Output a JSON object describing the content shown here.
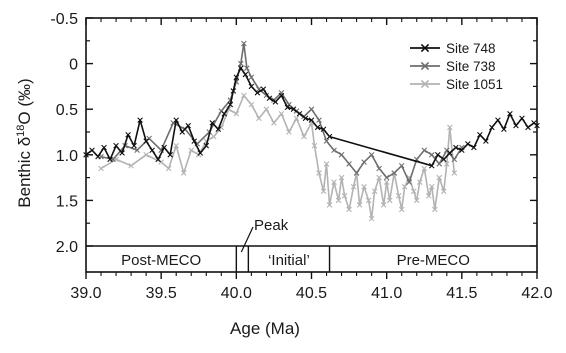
{
  "chart_data": {
    "type": "line",
    "xlabel": "Age (Ma)",
    "ylabel_main": "Benthic δ",
    "ylabel_sup": "18",
    "ylabel_tail": "O (‰)",
    "xlim": [
      39.0,
      42.0
    ],
    "ylim": [
      -0.5,
      2.0
    ],
    "y_inverted": true,
    "xticks": [
      39.0,
      39.5,
      40.0,
      40.5,
      41.0,
      41.5,
      42.0
    ],
    "xtick_labels": [
      "39.0",
      "39.5",
      "40.0",
      "40.5",
      "41.0",
      "41.5",
      "42.0"
    ],
    "yticks": [
      -0.5,
      0.0,
      0.5,
      1.0,
      1.5,
      2.0
    ],
    "ytick_labels": [
      "-0.5",
      "0",
      "0.5",
      "1.0",
      "1.5",
      "2.0"
    ],
    "legend_position": "top-right",
    "series": [
      {
        "name": "Site 748",
        "color": "#111111",
        "x": [
          39.0,
          39.04,
          39.08,
          39.12,
          39.16,
          39.2,
          39.24,
          39.28,
          39.32,
          39.36,
          39.4,
          39.44,
          39.48,
          39.52,
          39.56,
          39.6,
          39.64,
          39.68,
          39.72,
          39.76,
          39.8,
          39.84,
          39.88,
          39.92,
          39.96,
          39.98,
          40.0,
          40.03,
          40.06,
          40.1,
          40.14,
          40.18,
          40.22,
          40.26,
          40.3,
          40.34,
          40.38,
          40.42,
          40.46,
          40.5,
          40.54,
          40.58,
          40.62,
          41.3,
          41.34,
          41.38,
          41.42,
          41.46,
          41.5,
          41.54,
          41.58,
          41.62,
          41.66,
          41.7,
          41.74,
          41.78,
          41.82,
          41.86,
          41.9,
          41.94,
          41.98,
          42.0
        ],
        "y": [
          1.0,
          0.95,
          1.02,
          0.92,
          1.05,
          0.9,
          0.98,
          0.78,
          0.9,
          0.62,
          0.85,
          0.95,
          1.05,
          0.92,
          1.0,
          0.62,
          0.75,
          0.68,
          0.85,
          0.98,
          0.9,
          0.65,
          0.72,
          0.55,
          0.45,
          0.3,
          0.15,
          0.05,
          0.12,
          0.25,
          0.32,
          0.28,
          0.38,
          0.42,
          0.35,
          0.48,
          0.5,
          0.55,
          0.6,
          0.62,
          0.7,
          0.72,
          0.8,
          1.12,
          1.0,
          1.05,
          0.98,
          0.92,
          0.95,
          0.88,
          0.92,
          0.78,
          0.85,
          0.7,
          0.62,
          0.72,
          0.55,
          0.68,
          0.6,
          0.7,
          0.65,
          0.68
        ]
      },
      {
        "name": "Site 738",
        "color": "#6e6e6e",
        "x": [
          39.1,
          39.18,
          39.26,
          39.34,
          39.42,
          39.5,
          39.58,
          39.66,
          39.74,
          39.82,
          39.9,
          39.96,
          40.0,
          40.03,
          40.05,
          40.07,
          40.1,
          40.15,
          40.2,
          40.25,
          40.3,
          40.35,
          40.4,
          40.45,
          40.5,
          40.55,
          40.6,
          40.65,
          40.7,
          40.75,
          40.8,
          40.85,
          40.9,
          40.95,
          41.0,
          41.05,
          41.1,
          41.15,
          41.2,
          41.25,
          41.3,
          41.35,
          41.4,
          41.45,
          41.5
        ],
        "y": [
          1.02,
          1.05,
          0.9,
          0.95,
          0.82,
          0.95,
          0.65,
          0.72,
          0.88,
          0.75,
          0.52,
          0.4,
          0.2,
          0.0,
          -0.22,
          0.05,
          0.15,
          0.28,
          0.35,
          0.4,
          0.32,
          0.45,
          0.52,
          0.58,
          0.5,
          0.62,
          0.85,
          0.95,
          1.0,
          1.1,
          1.2,
          1.08,
          1.0,
          1.15,
          1.25,
          1.2,
          1.12,
          1.3,
          1.05,
          0.95,
          1.0,
          1.1,
          0.95,
          1.05,
          0.92
        ]
      },
      {
        "name": "Site 1051",
        "color": "#b3b3b3",
        "x": [
          39.1,
          39.2,
          39.3,
          39.4,
          39.5,
          39.55,
          39.6,
          39.65,
          39.7,
          39.75,
          39.8,
          39.85,
          39.9,
          39.95,
          40.0,
          40.05,
          40.1,
          40.15,
          40.2,
          40.25,
          40.3,
          40.35,
          40.4,
          40.45,
          40.5,
          40.52,
          40.55,
          40.58,
          40.6,
          40.62,
          40.65,
          40.68,
          40.7,
          40.72,
          40.75,
          40.78,
          40.8,
          40.82,
          40.85,
          40.88,
          40.9,
          40.92,
          40.95,
          40.98,
          41.0,
          41.02,
          41.05,
          41.08,
          41.1,
          41.12,
          41.15,
          41.18,
          41.2,
          41.22,
          41.25,
          41.28,
          41.3,
          41.32,
          41.35,
          41.38,
          41.4,
          41.42,
          41.45
        ],
        "y": [
          1.15,
          1.05,
          1.12,
          1.0,
          1.08,
          1.15,
          0.9,
          1.2,
          0.95,
          1.0,
          0.85,
          0.8,
          0.7,
          0.5,
          0.55,
          0.35,
          0.45,
          0.6,
          0.5,
          0.65,
          0.55,
          0.75,
          0.6,
          0.8,
          0.65,
          0.9,
          1.2,
          1.4,
          1.1,
          1.55,
          1.3,
          1.5,
          1.25,
          1.45,
          1.6,
          1.35,
          1.2,
          1.55,
          1.35,
          1.5,
          1.7,
          1.4,
          1.25,
          1.55,
          1.3,
          1.5,
          1.2,
          1.45,
          1.6,
          1.35,
          1.25,
          1.4,
          1.5,
          1.3,
          1.15,
          1.45,
          1.35,
          1.6,
          1.25,
          1.4,
          1.1,
          0.7,
          1.2
        ]
      }
    ],
    "intervals": [
      {
        "label": "Post-MECO",
        "start": 39.0,
        "end": 40.0
      },
      {
        "label": "",
        "start": 40.0,
        "end": 40.08
      },
      {
        "label": "‘Initial’",
        "start": 40.08,
        "end": 40.62
      },
      {
        "label": "Pre-MECO",
        "start": 40.62,
        "end": 42.0
      }
    ],
    "peak_label": "Peak",
    "peak_x": 40.04
  }
}
